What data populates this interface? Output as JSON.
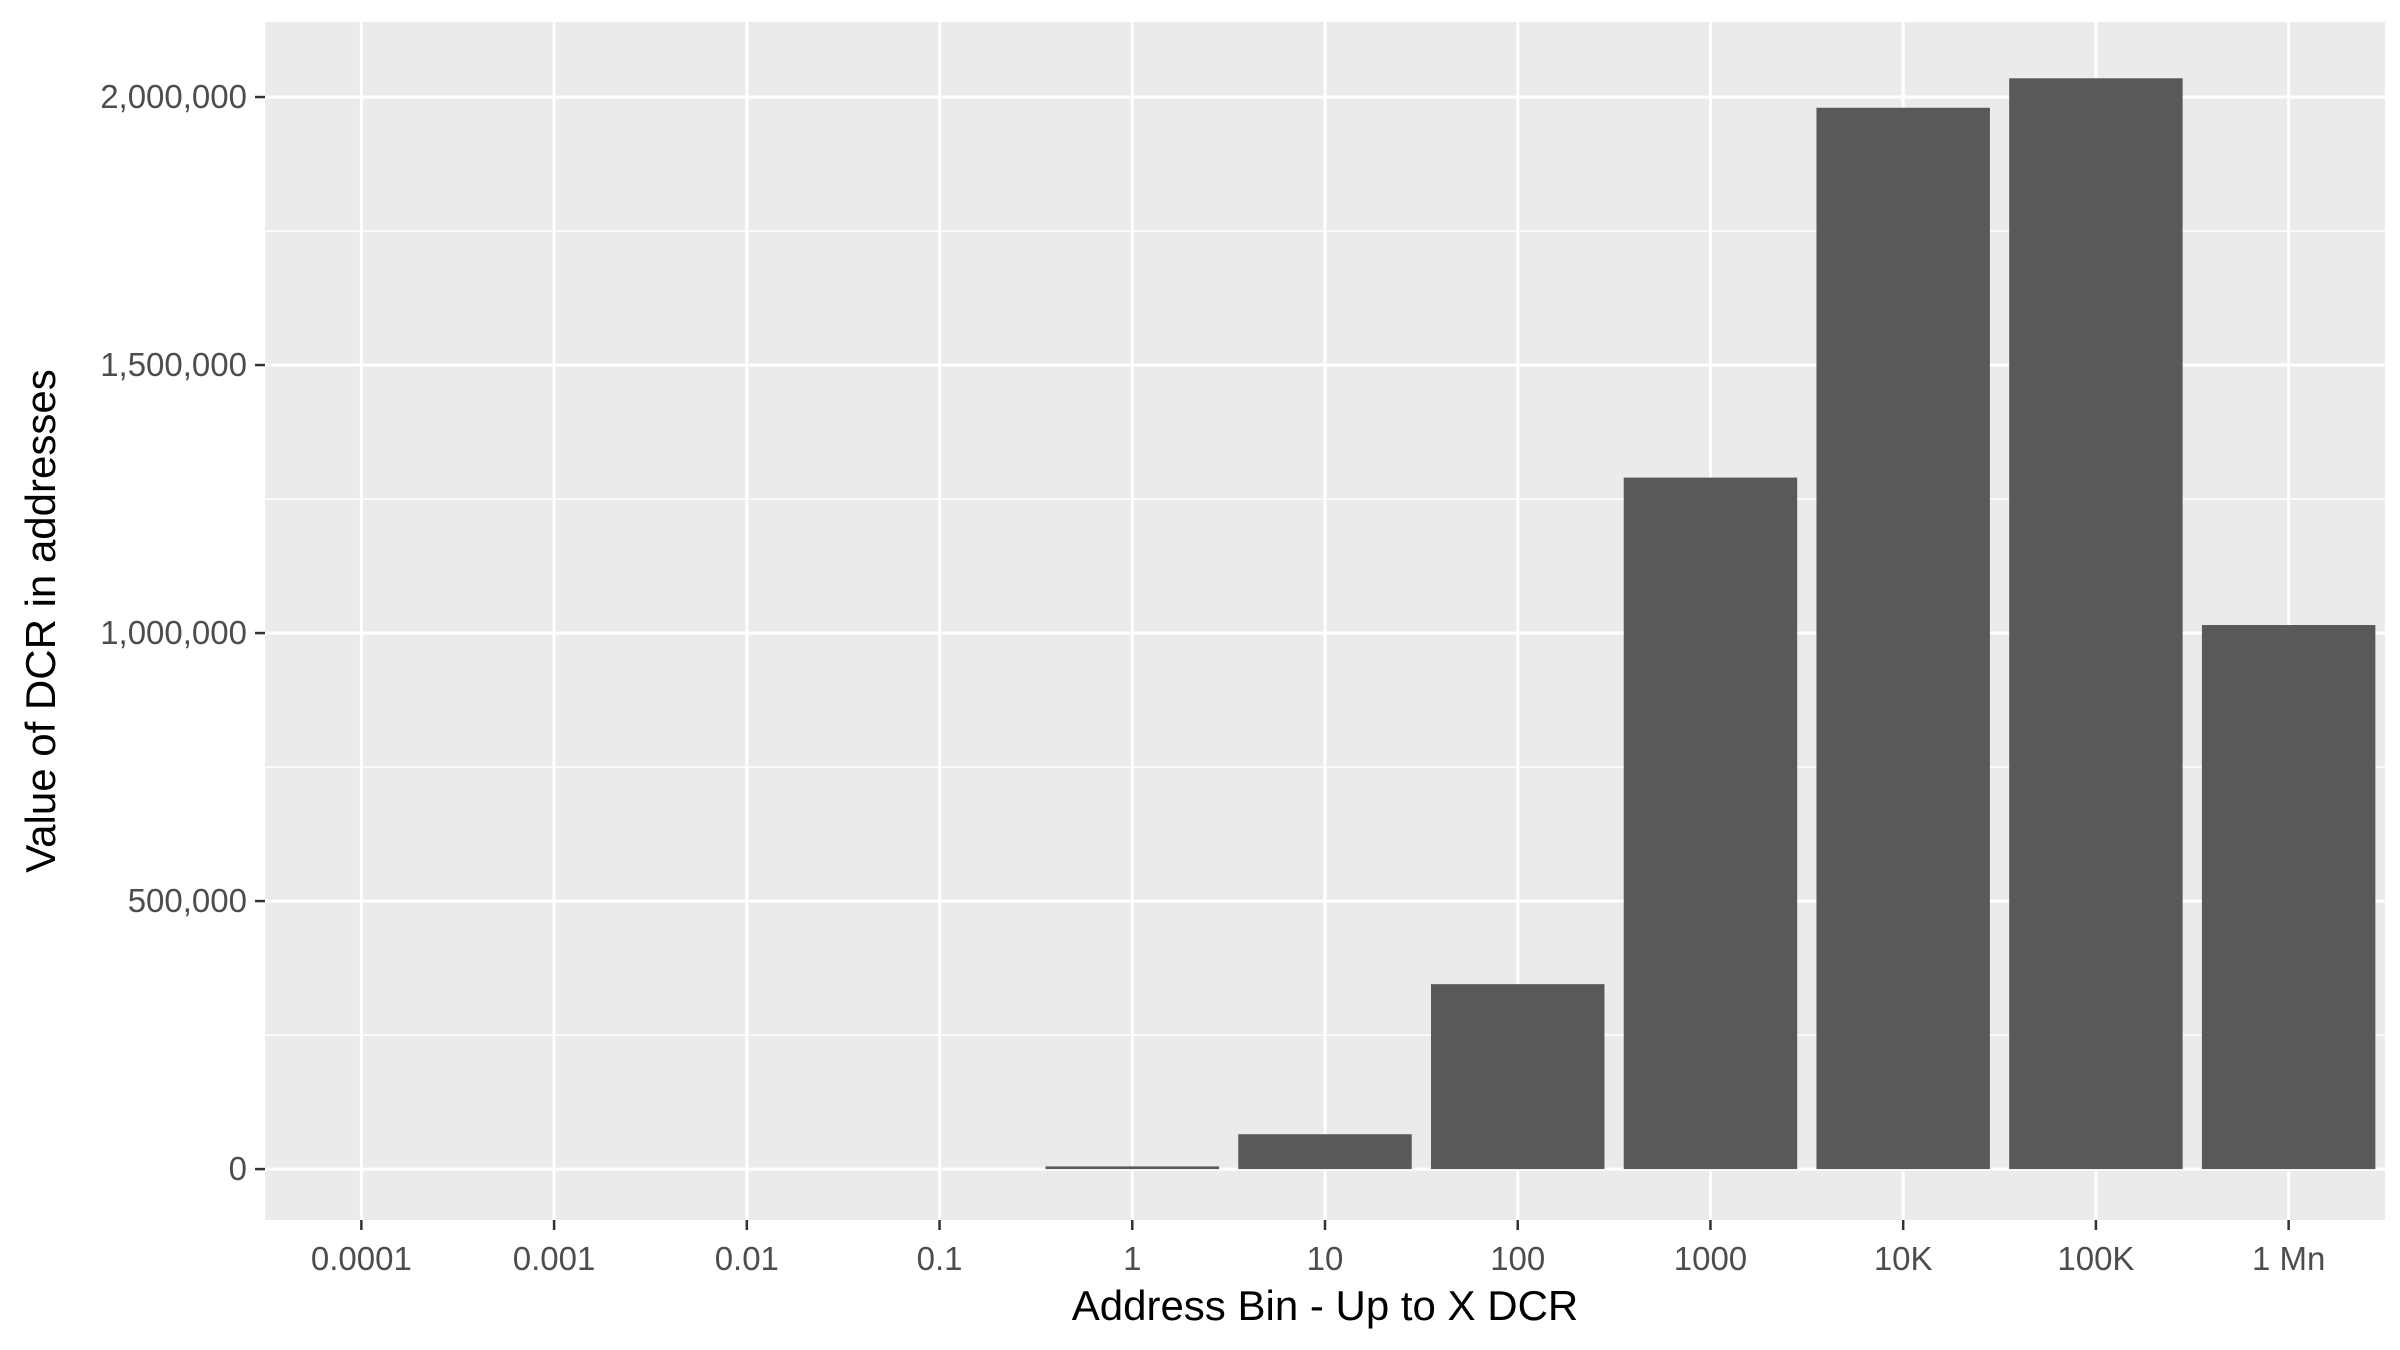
{
  "chart_data": {
    "type": "bar",
    "title": "",
    "xlabel": "Address Bin - Up to X DCR",
    "ylabel": "Value of DCR in addresses",
    "categories": [
      "0.0001",
      "0.001",
      "0.01",
      "0.1",
      "1",
      "10",
      "100",
      "1000",
      "10K",
      "100K",
      "1 Mn"
    ],
    "values": [
      0,
      0,
      0,
      0,
      5000,
      65000,
      345000,
      1290000,
      1980000,
      2035000,
      1015000
    ],
    "ylim": [
      -95000,
      2140000
    ],
    "yticks": [
      0,
      500000,
      1000000,
      1500000,
      2000000
    ],
    "ytick_labels": [
      "0",
      "500,000",
      "1,000,000",
      "1,500,000",
      "2,000,000"
    ],
    "grid": true,
    "legend": "none",
    "colors": {
      "panel": "#ebebeb",
      "grid": "#ffffff",
      "bar": "#595959",
      "tick_text": "#4d4d4d",
      "axis_title": "#000000"
    }
  }
}
